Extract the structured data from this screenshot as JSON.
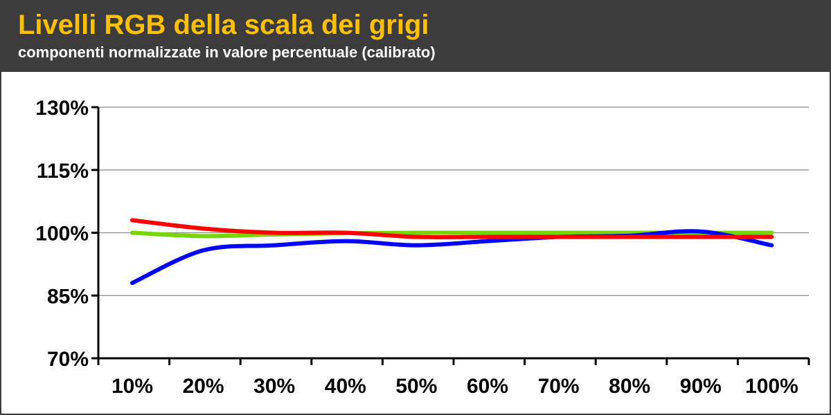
{
  "header": {
    "title": "Livelli RGB della scala dei grigi",
    "subtitle": "componenti normalizzate in valore percentuale (calibrato)",
    "title_color": "#ffc000",
    "subtitle_color": "#ffffff",
    "background": "#3c3c3c"
  },
  "chart_data": {
    "type": "line",
    "categories": [
      "10%",
      "20%",
      "30%",
      "40%",
      "50%",
      "60%",
      "70%",
      "80%",
      "90%",
      "100%"
    ],
    "ylim": [
      70,
      130
    ],
    "yticks": [
      70,
      85,
      100,
      115,
      130
    ],
    "ytick_labels": [
      "70%",
      "85%",
      "100%",
      "115%",
      "130%"
    ],
    "grid": true,
    "series": [
      {
        "color": "#76d600",
        "values": [
          100,
          99.2,
          99.6,
          99.9,
          100,
          100,
          100,
          100,
          100,
          100
        ]
      },
      {
        "color": "#0000ff",
        "values": [
          88,
          95.8,
          97,
          98,
          97,
          98,
          99,
          99.3,
          100.3,
          97
        ]
      },
      {
        "color": "#ff0000",
        "values": [
          103,
          101,
          100,
          100,
          99,
          99,
          99,
          99,
          99,
          99
        ]
      }
    ]
  }
}
